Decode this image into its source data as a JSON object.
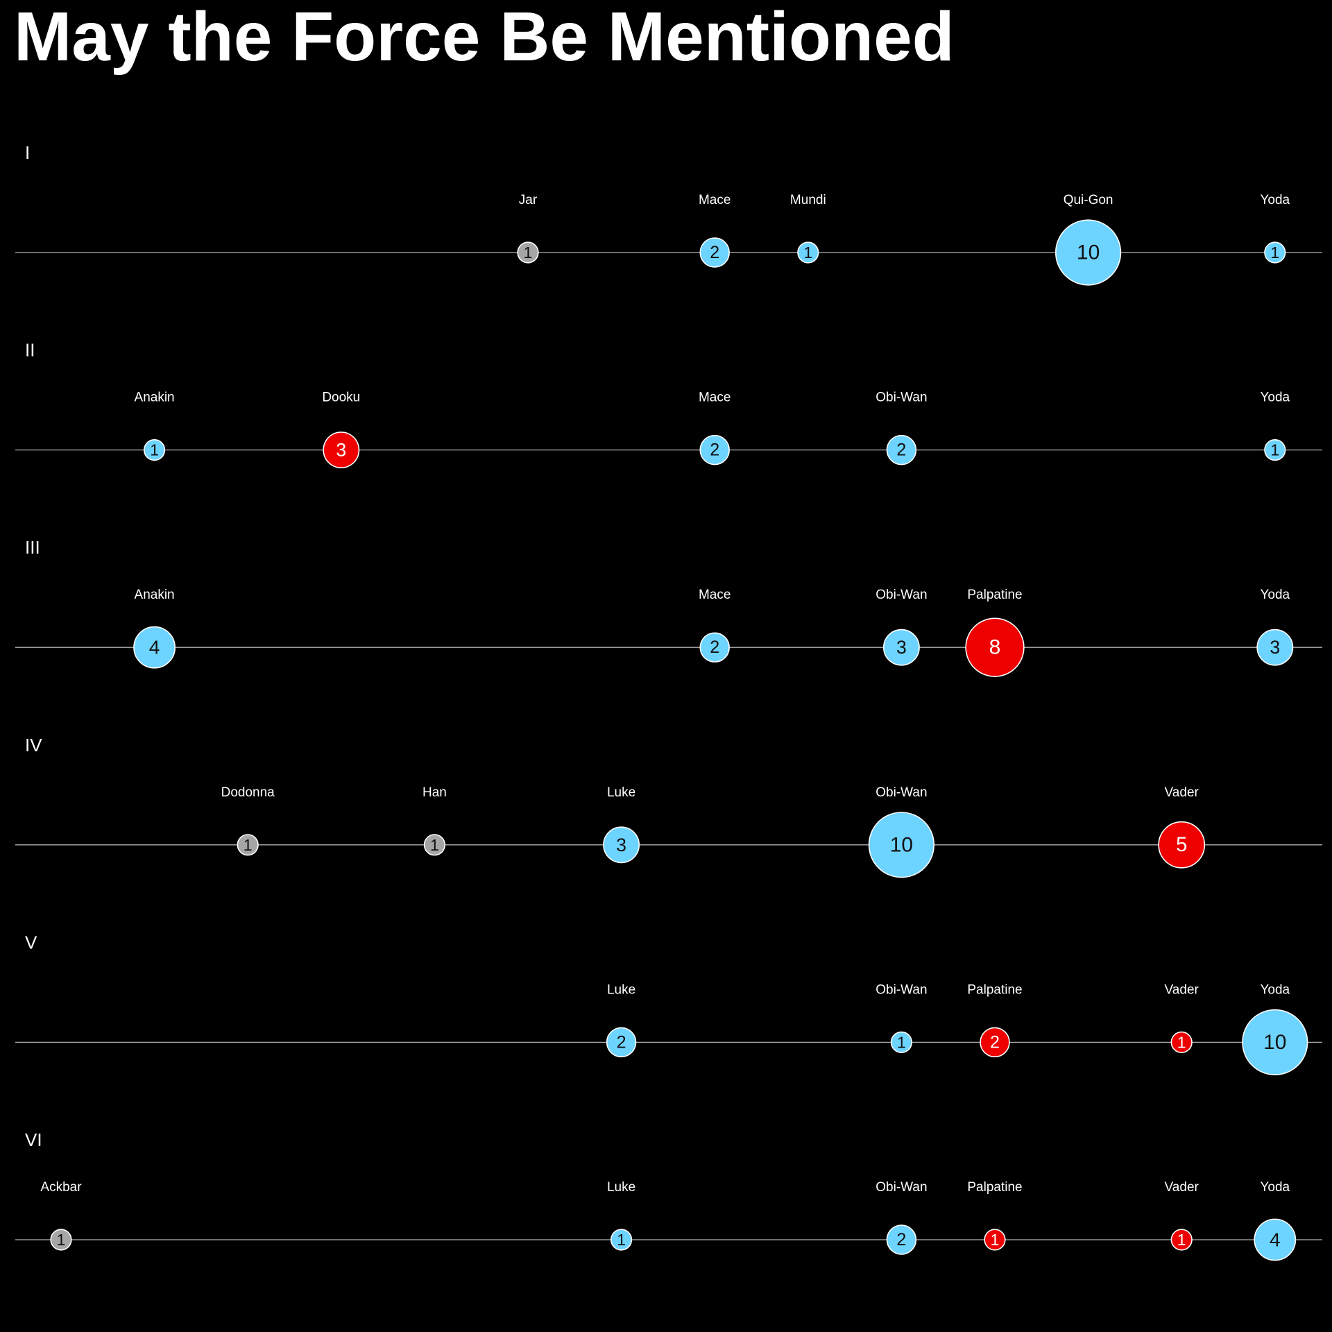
{
  "chart_data": {
    "type": "scatter",
    "title": "May the Force Be Mentioned",
    "colors": {
      "background": "#000000",
      "light": "#6dd3ff",
      "dark": "#ee0000",
      "neutral": "#a6a6a6",
      "bubble_outline": "#ffffff",
      "baseline": "#b0b0b0",
      "text": "#ffffff"
    },
    "characters": [
      "Ackbar",
      "Anakin",
      "Dodonna",
      "Dooku",
      "Han",
      "Jar",
      "Luke",
      "Mace",
      "Mundi",
      "Obi-Wan",
      "Palpatine",
      "Qui-Gon",
      "Vader",
      "Yoda"
    ],
    "series": [
      {
        "name": "I",
        "points": [
          {
            "character": "Jar",
            "value": 1,
            "side": "neutral"
          },
          {
            "character": "Mace",
            "value": 2,
            "side": "light"
          },
          {
            "character": "Mundi",
            "value": 1,
            "side": "light"
          },
          {
            "character": "Qui-Gon",
            "value": 10,
            "side": "light"
          },
          {
            "character": "Yoda",
            "value": 1,
            "side": "light"
          }
        ]
      },
      {
        "name": "II",
        "points": [
          {
            "character": "Anakin",
            "value": 1,
            "side": "light"
          },
          {
            "character": "Dooku",
            "value": 3,
            "side": "dark"
          },
          {
            "character": "Mace",
            "value": 2,
            "side": "light"
          },
          {
            "character": "Obi-Wan",
            "value": 2,
            "side": "light"
          },
          {
            "character": "Yoda",
            "value": 1,
            "side": "light"
          }
        ]
      },
      {
        "name": "III",
        "points": [
          {
            "character": "Anakin",
            "value": 4,
            "side": "light"
          },
          {
            "character": "Mace",
            "value": 2,
            "side": "light"
          },
          {
            "character": "Obi-Wan",
            "value": 3,
            "side": "light"
          },
          {
            "character": "Palpatine",
            "value": 8,
            "side": "dark"
          },
          {
            "character": "Yoda",
            "value": 3,
            "side": "light"
          }
        ]
      },
      {
        "name": "IV",
        "points": [
          {
            "character": "Dodonna",
            "value": 1,
            "side": "neutral"
          },
          {
            "character": "Han",
            "value": 1,
            "side": "neutral"
          },
          {
            "character": "Luke",
            "value": 3,
            "side": "light"
          },
          {
            "character": "Obi-Wan",
            "value": 10,
            "side": "light"
          },
          {
            "character": "Vader",
            "value": 5,
            "side": "dark"
          }
        ]
      },
      {
        "name": "V",
        "points": [
          {
            "character": "Luke",
            "value": 2,
            "side": "light"
          },
          {
            "character": "Obi-Wan",
            "value": 1,
            "side": "light"
          },
          {
            "character": "Palpatine",
            "value": 2,
            "side": "dark"
          },
          {
            "character": "Vader",
            "value": 1,
            "side": "dark"
          },
          {
            "character": "Yoda",
            "value": 10,
            "side": "light"
          }
        ]
      },
      {
        "name": "VI",
        "points": [
          {
            "character": "Ackbar",
            "value": 1,
            "side": "neutral"
          },
          {
            "character": "Luke",
            "value": 1,
            "side": "light"
          },
          {
            "character": "Obi-Wan",
            "value": 2,
            "side": "light"
          },
          {
            "character": "Palpatine",
            "value": 1,
            "side": "dark"
          },
          {
            "character": "Vader",
            "value": 1,
            "side": "dark"
          },
          {
            "character": "Yoda",
            "value": 4,
            "side": "light"
          }
        ]
      }
    ]
  }
}
